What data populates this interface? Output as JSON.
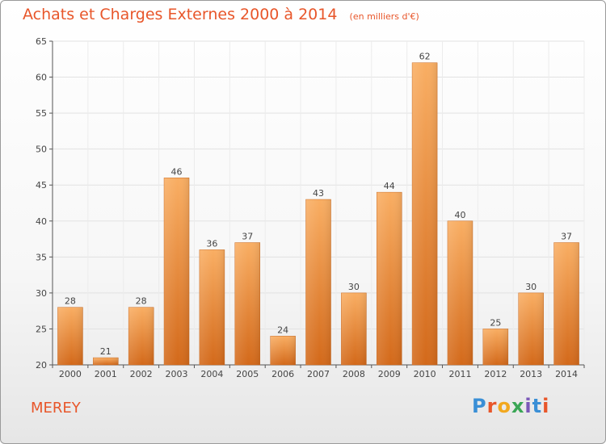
{
  "title": "Achats et Charges Externes 2000 à 2014",
  "unit": "(en milliers d'€)",
  "commune": "MEREY",
  "logo": "Proxiti",
  "colors": {
    "title": "#e8562a",
    "bar_light": "#f7a65a",
    "bar_dark": "#d96f1c",
    "grid": "#e3e3e3",
    "axis": "#555555"
  },
  "chart_data": {
    "type": "bar",
    "categories": [
      "2000",
      "2001",
      "2002",
      "2003",
      "2004",
      "2005",
      "2006",
      "2007",
      "2008",
      "2009",
      "2010",
      "2011",
      "2012",
      "2013",
      "2014"
    ],
    "values": [
      28,
      21,
      28,
      46,
      36,
      37,
      24,
      43,
      30,
      44,
      62,
      40,
      25,
      30,
      37
    ],
    "ylim": [
      20,
      65
    ],
    "yticks": [
      20,
      25,
      30,
      35,
      40,
      45,
      50,
      55,
      60,
      65
    ],
    "grid": true,
    "data_labels": true
  }
}
